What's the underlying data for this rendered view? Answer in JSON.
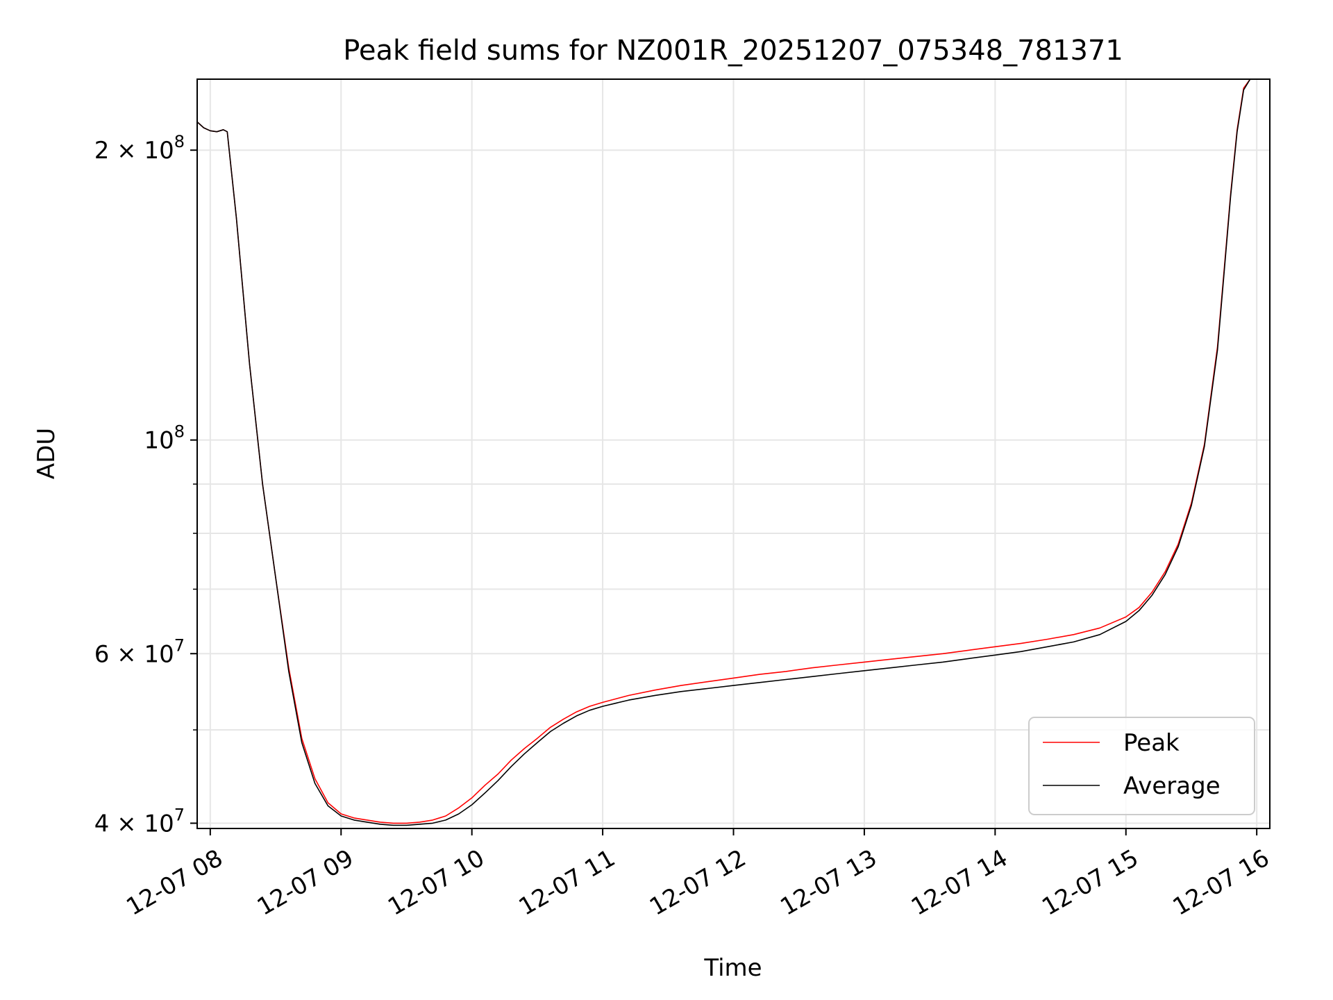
{
  "chart_data": {
    "type": "line",
    "title": "Peak field sums for NZ001R_20251207_075348_781371",
    "xlabel": "Time",
    "ylabel": "ADU",
    "yscale": "log",
    "xlim": [
      7.9,
      16.1
    ],
    "ylim": [
      39500000,
      237000000
    ],
    "grid": true,
    "legend_position": "bottom-right",
    "x_ticks": [
      {
        "value": 8,
        "label": "12-07 08"
      },
      {
        "value": 9,
        "label": "12-07 09"
      },
      {
        "value": 10,
        "label": "12-07 10"
      },
      {
        "value": 11,
        "label": "12-07 11"
      },
      {
        "value": 12,
        "label": "12-07 12"
      },
      {
        "value": 13,
        "label": "12-07 13"
      },
      {
        "value": 14,
        "label": "12-07 14"
      },
      {
        "value": 15,
        "label": "12-07 15"
      },
      {
        "value": 16,
        "label": "12-07 16"
      }
    ],
    "y_major_ticks": [
      {
        "value": 40000000,
        "base": "4 × 10",
        "exp": "7"
      },
      {
        "value": 60000000,
        "base": "6 × 10",
        "exp": "7"
      },
      {
        "value": 100000000,
        "base": "10",
        "exp": "8"
      },
      {
        "value": 200000000,
        "base": "2 × 10",
        "exp": "8"
      }
    ],
    "y_minor_ticks": [
      50000000,
      70000000,
      80000000,
      90000000
    ],
    "series": [
      {
        "name": "Peak",
        "color": "#ff0000",
        "x": [
          7.9,
          7.95,
          8.0,
          8.05,
          8.1,
          8.13,
          8.2,
          8.3,
          8.4,
          8.5,
          8.6,
          8.7,
          8.8,
          8.9,
          9.0,
          9.1,
          9.2,
          9.3,
          9.4,
          9.5,
          9.6,
          9.7,
          9.8,
          9.9,
          10.0,
          10.1,
          10.2,
          10.3,
          10.4,
          10.5,
          10.6,
          10.7,
          10.8,
          10.9,
          11.0,
          11.2,
          11.4,
          11.6,
          11.8,
          12.0,
          12.2,
          12.4,
          12.6,
          12.8,
          13.0,
          13.2,
          13.4,
          13.6,
          13.8,
          14.0,
          14.2,
          14.4,
          14.6,
          14.8,
          15.0,
          15.1,
          15.2,
          15.3,
          15.4,
          15.5,
          15.6,
          15.7,
          15.75,
          15.8,
          15.85,
          15.9,
          15.95,
          16.0
        ],
        "y": [
          214000000,
          211000000,
          209500000,
          209000000,
          210000000,
          209000000,
          170000000,
          120000000,
          90000000,
          72000000,
          58000000,
          49000000,
          44500000,
          42000000,
          40900000,
          40500000,
          40300000,
          40100000,
          40000000,
          40000000,
          40100000,
          40300000,
          40700000,
          41500000,
          42500000,
          43800000,
          45000000,
          46500000,
          47800000,
          49000000,
          50300000,
          51300000,
          52200000,
          52900000,
          53400000,
          54300000,
          55000000,
          55600000,
          56100000,
          56600000,
          57100000,
          57500000,
          58000000,
          58400000,
          58800000,
          59200000,
          59600000,
          60000000,
          60500000,
          61000000,
          61500000,
          62100000,
          62800000,
          63800000,
          65500000,
          67000000,
          69500000,
          73000000,
          78000000,
          86000000,
          99000000,
          125000000,
          150000000,
          180000000,
          210000000,
          232000000,
          237000000,
          237000000
        ]
      },
      {
        "name": "Average",
        "color": "#000000",
        "x": [
          7.9,
          7.95,
          8.0,
          8.05,
          8.1,
          8.13,
          8.2,
          8.3,
          8.4,
          8.5,
          8.6,
          8.7,
          8.8,
          8.9,
          9.0,
          9.1,
          9.2,
          9.3,
          9.4,
          9.5,
          9.6,
          9.7,
          9.8,
          9.9,
          10.0,
          10.1,
          10.2,
          10.3,
          10.4,
          10.5,
          10.6,
          10.7,
          10.8,
          10.9,
          11.0,
          11.2,
          11.4,
          11.6,
          11.8,
          12.0,
          12.2,
          12.4,
          12.6,
          12.8,
          13.0,
          13.2,
          13.4,
          13.6,
          13.8,
          14.0,
          14.2,
          14.4,
          14.6,
          14.8,
          15.0,
          15.1,
          15.2,
          15.3,
          15.4,
          15.5,
          15.6,
          15.7,
          15.75,
          15.8,
          15.85,
          15.9,
          15.95,
          16.0
        ],
        "y": [
          214000000,
          211000000,
          209500000,
          209000000,
          210000000,
          209000000,
          170000000,
          120000000,
          90000000,
          72000000,
          57500000,
          48500000,
          44000000,
          41700000,
          40700000,
          40300000,
          40100000,
          39900000,
          39800000,
          39800000,
          39900000,
          40000000,
          40300000,
          40900000,
          41800000,
          43000000,
          44300000,
          45800000,
          47200000,
          48500000,
          49800000,
          50800000,
          51700000,
          52400000,
          52900000,
          53700000,
          54300000,
          54800000,
          55200000,
          55600000,
          56000000,
          56400000,
          56800000,
          57200000,
          57600000,
          58000000,
          58400000,
          58800000,
          59300000,
          59800000,
          60300000,
          61000000,
          61700000,
          62800000,
          64800000,
          66500000,
          69000000,
          72500000,
          77500000,
          85500000,
          98500000,
          124000000,
          149000000,
          179000000,
          209000000,
          231000000,
          237000000,
          237000000
        ]
      }
    ]
  }
}
